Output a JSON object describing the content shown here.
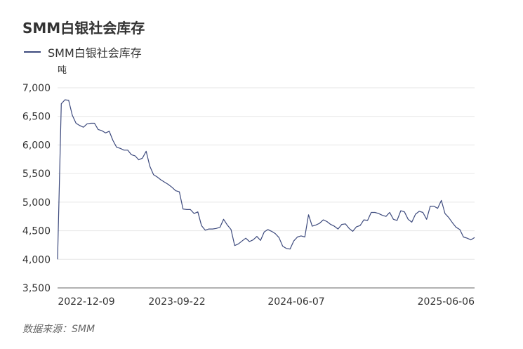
{
  "header": {
    "title": "SMM白银社会库存",
    "source": "数据来源：SMM"
  },
  "chart_data": {
    "type": "line",
    "title": "SMM白银社会库存",
    "ylabel": "吨",
    "ylim": [
      3500,
      7000
    ],
    "yticks": [
      3500,
      4000,
      4500,
      5000,
      5500,
      6000,
      6500,
      7000
    ],
    "ytick_labels": [
      "3,500",
      "4,000",
      "4,500",
      "5,000",
      "5,500",
      "6,000",
      "6,500",
      "7,000"
    ],
    "xticks": [
      "2022-12-09",
      "2023-09-22",
      "2024-06-07",
      "2025-06-06"
    ],
    "grid": true,
    "legend": "top-left",
    "color": "#3d4a7d",
    "series": [
      {
        "name": "SMM白银社会库存",
        "values": [
          4000,
          6720,
          6790,
          6780,
          6520,
          6380,
          6340,
          6310,
          6370,
          6380,
          6380,
          6270,
          6250,
          6210,
          6240,
          6080,
          5960,
          5940,
          5910,
          5910,
          5830,
          5810,
          5740,
          5770,
          5890,
          5630,
          5480,
          5440,
          5390,
          5350,
          5310,
          5260,
          5200,
          5180,
          4880,
          4870,
          4870,
          4800,
          4830,
          4590,
          4510,
          4530,
          4530,
          4540,
          4560,
          4700,
          4600,
          4520,
          4240,
          4270,
          4320,
          4370,
          4310,
          4340,
          4400,
          4330,
          4480,
          4520,
          4490,
          4450,
          4380,
          4230,
          4190,
          4180,
          4320,
          4390,
          4410,
          4390,
          4780,
          4580,
          4600,
          4630,
          4690,
          4660,
          4610,
          4580,
          4530,
          4610,
          4620,
          4540,
          4490,
          4570,
          4590,
          4690,
          4680,
          4820,
          4820,
          4800,
          4770,
          4750,
          4820,
          4700,
          4680,
          4850,
          4830,
          4700,
          4650,
          4790,
          4840,
          4820,
          4700,
          4930,
          4930,
          4890,
          5030,
          4800,
          4730,
          4640,
          4560,
          4520,
          4390,
          4370,
          4340,
          4380
        ]
      }
    ]
  }
}
